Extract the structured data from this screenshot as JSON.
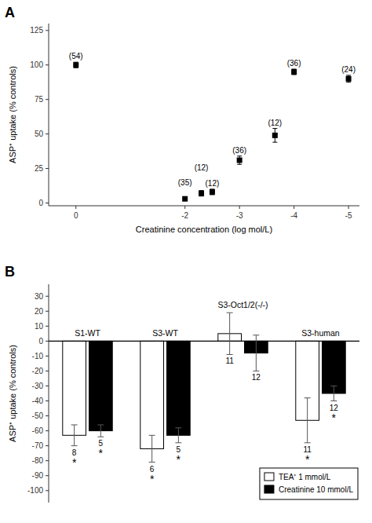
{
  "chart_data": [
    {
      "type": "scatter",
      "panel_label": "A",
      "x": [
        0,
        -5,
        -4,
        -3.65,
        -3,
        -2.5,
        -2.3,
        -2
      ],
      "values": [
        100,
        90,
        95,
        49,
        31,
        8,
        7,
        3
      ],
      "errors": [
        2,
        2.5,
        2,
        5,
        3,
        2,
        2,
        1
      ],
      "point_labels": [
        "(54)",
        "(24)",
        "(36)",
        "(12)",
        "(36)",
        "(12)",
        "(12)",
        "(35)"
      ],
      "xlabel": "Creatinine concentration (log mol/L)",
      "ylabel": "ASP⁺ uptake (% controls)",
      "xlim": [
        0.5,
        -5.2
      ],
      "ylim": [
        -2,
        130
      ],
      "xticks": [
        0,
        -5,
        -4,
        -3,
        -2
      ],
      "yticks": [
        0,
        25,
        50,
        75,
        100,
        125
      ],
      "color": "#000000",
      "marker": "square"
    },
    {
      "type": "bar",
      "panel_label": "B",
      "categories": [
        "S1-WT",
        "S3-WT",
        "S3-Oct1/2(-/-)",
        "S3-human"
      ],
      "series": [
        {
          "name": "TEA⁺ 1 mmol/L",
          "color": "#ffffff",
          "values": [
            -63,
            -72,
            5,
            -53
          ],
          "errors": [
            7,
            9,
            14,
            15
          ],
          "n": [
            8,
            6,
            11,
            11
          ],
          "significance": [
            "*",
            "*",
            null,
            "*"
          ]
        },
        {
          "name": "Creatinine 10 mmol/L",
          "color": "#000000",
          "values": [
            -60,
            -63,
            -8,
            -35
          ],
          "errors": [
            4,
            5,
            12,
            5
          ],
          "n": [
            5,
            5,
            12,
            12
          ],
          "significance": [
            "*",
            "*",
            null,
            "*"
          ]
        }
      ],
      "ylabel": "ASP⁺ uptake (% controls)",
      "ylim": [
        -108,
        38
      ],
      "yticks": [
        -100,
        -90,
        -80,
        -70,
        -60,
        -50,
        -40,
        -30,
        -20,
        -10,
        0,
        10,
        20,
        30
      ],
      "legend": "lower right"
    }
  ]
}
